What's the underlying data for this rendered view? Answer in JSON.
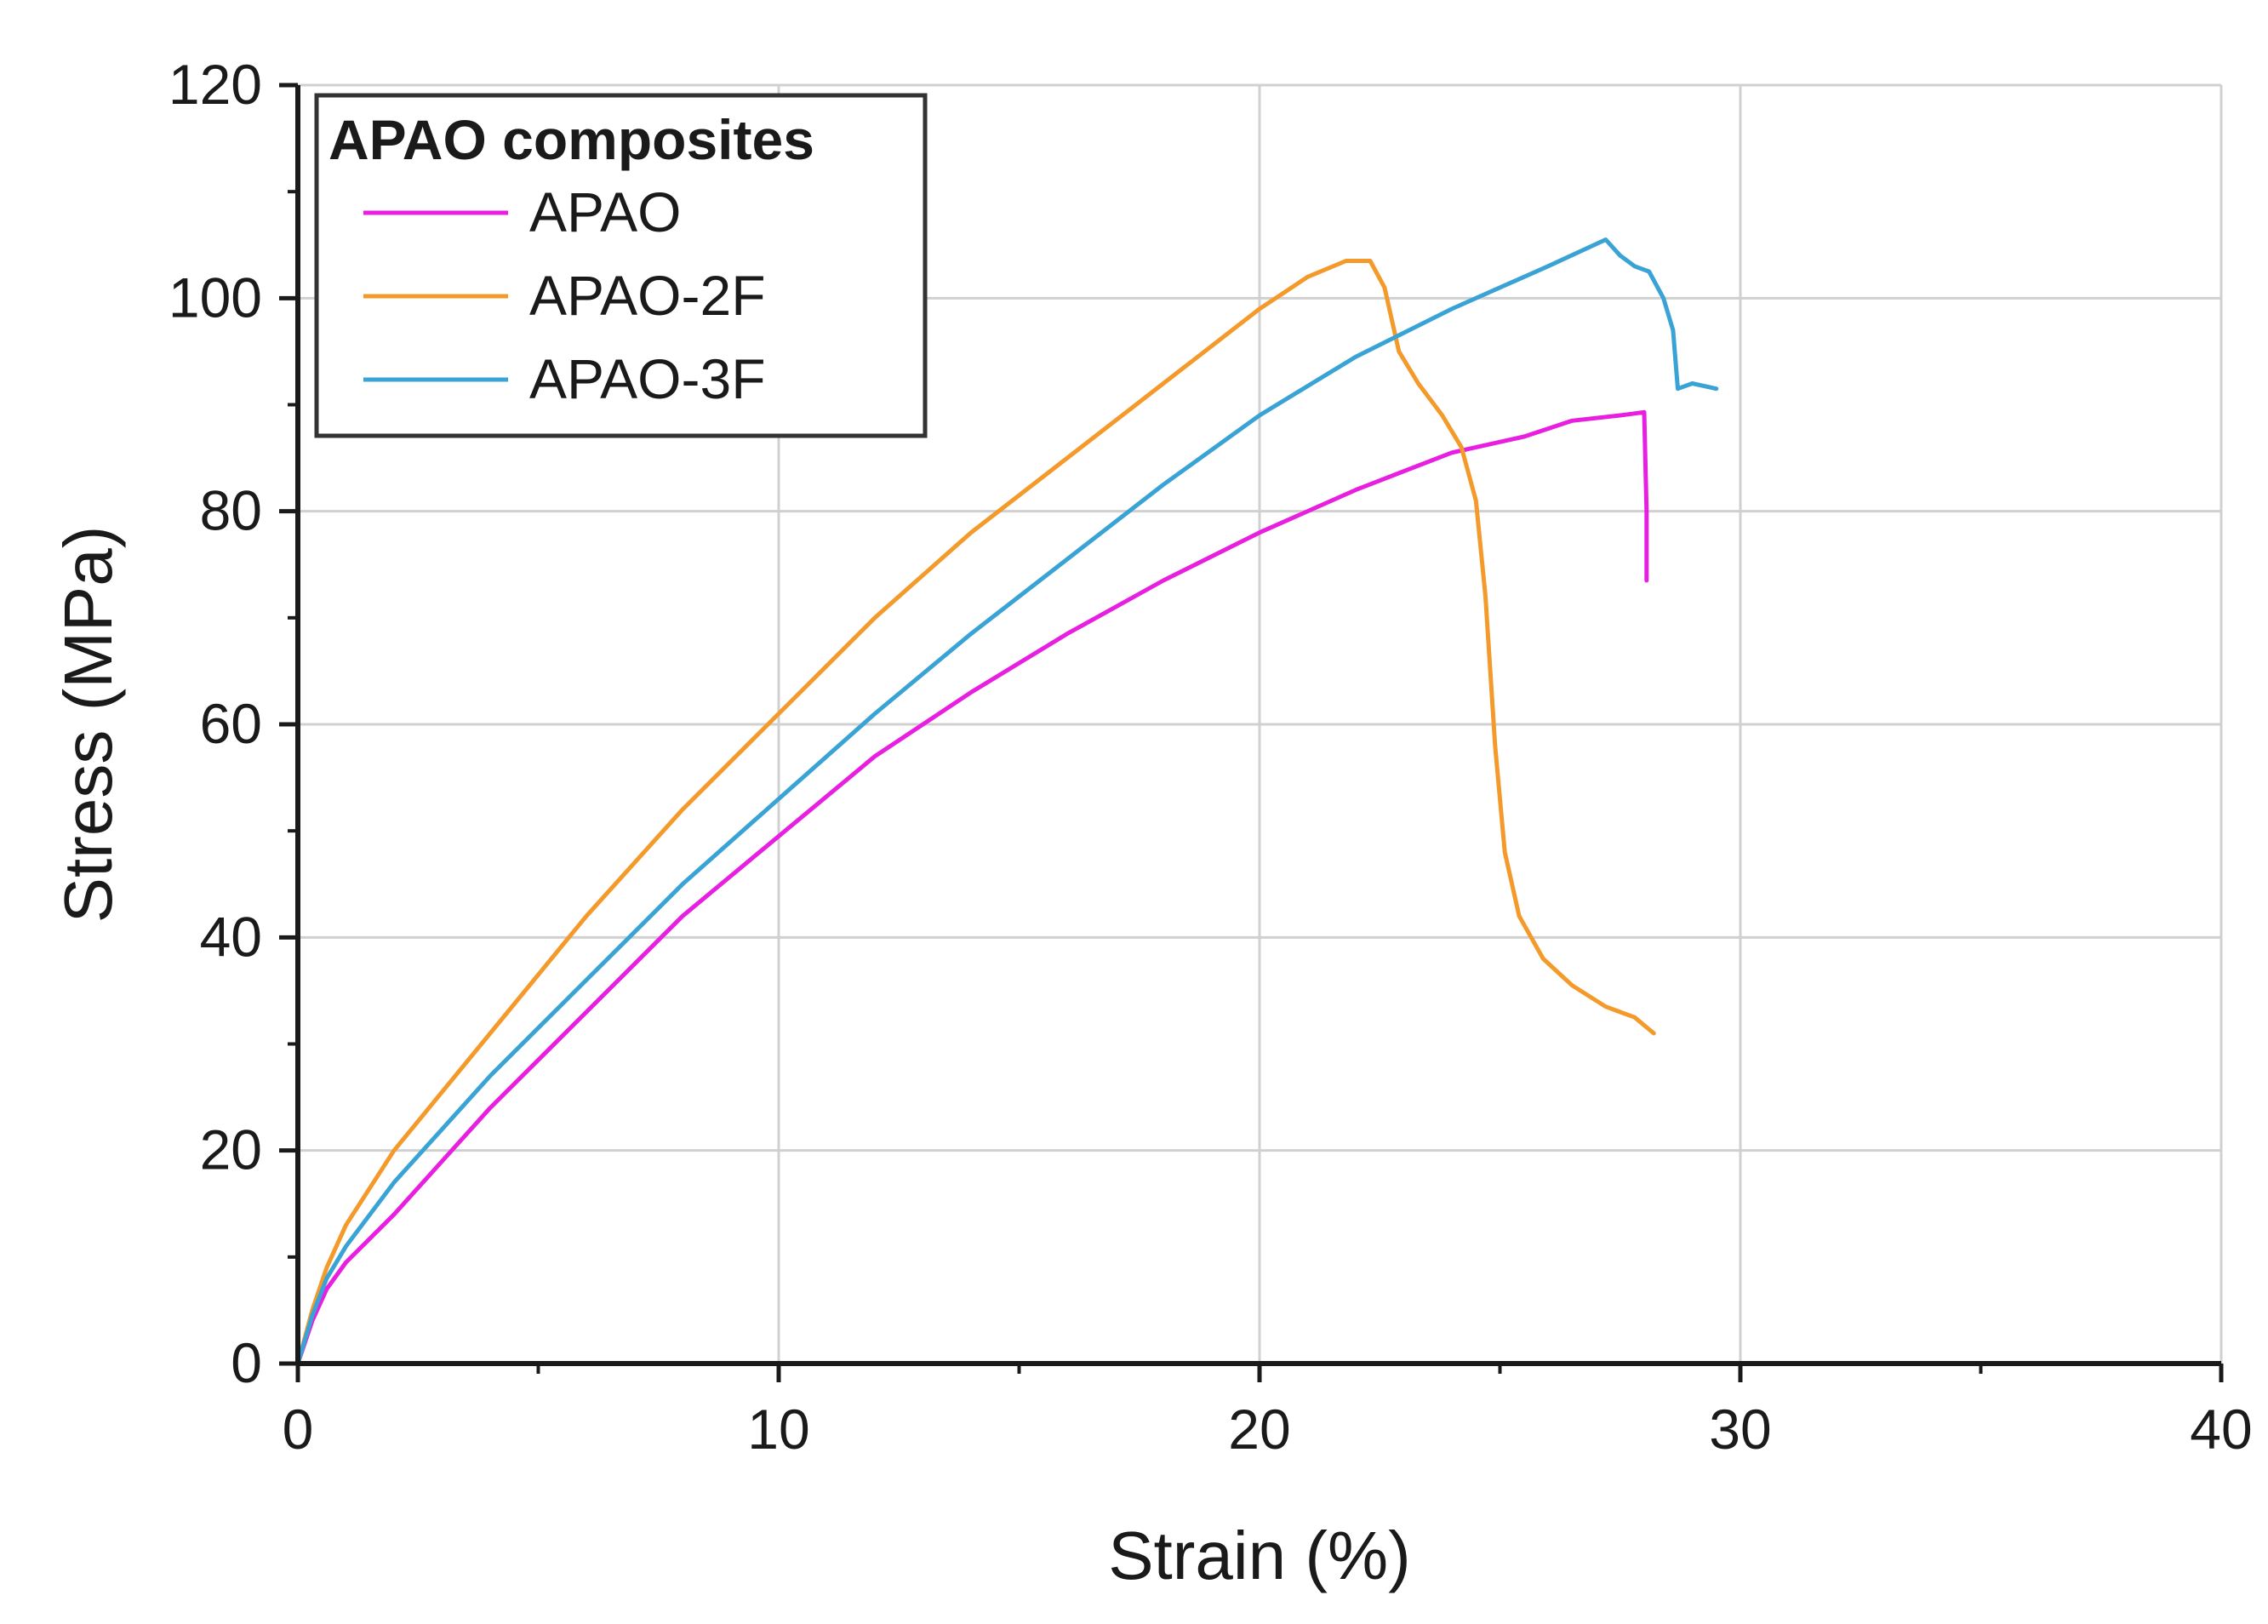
{
  "chart_data": {
    "type": "line",
    "title": "",
    "xlabel": "Strain (%)",
    "ylabel": "Stress (MPa)",
    "xlim": [
      0,
      40
    ],
    "ylim": [
      0,
      120
    ],
    "x_ticks": [
      0,
      10,
      20,
      30,
      40
    ],
    "y_ticks": [
      0,
      20,
      40,
      60,
      80,
      100,
      120
    ],
    "grid": true,
    "legend": {
      "title": "APAO composites",
      "placement": "top-left"
    },
    "series": [
      {
        "name": "APAO",
        "color": "#e81ee0",
        "points": [
          [
            0,
            0
          ],
          [
            0.3,
            4
          ],
          [
            0.6,
            7
          ],
          [
            1,
            9.5
          ],
          [
            2,
            14
          ],
          [
            4,
            24
          ],
          [
            6,
            33
          ],
          [
            8,
            42
          ],
          [
            10,
            49.5
          ],
          [
            12,
            57
          ],
          [
            14,
            63
          ],
          [
            16,
            68.5
          ],
          [
            18,
            73.5
          ],
          [
            20,
            78
          ],
          [
            22,
            82
          ],
          [
            24,
            85.5
          ],
          [
            25.5,
            87
          ],
          [
            26.5,
            88.5
          ],
          [
            27.5,
            89
          ],
          [
            28,
            89.3
          ],
          [
            28.05,
            80
          ],
          [
            28.05,
            73.5
          ]
        ]
      },
      {
        "name": "APAO-2F",
        "color": "#f39a2b",
        "points": [
          [
            0,
            0
          ],
          [
            0.3,
            5
          ],
          [
            0.6,
            9
          ],
          [
            1,
            13
          ],
          [
            2,
            20
          ],
          [
            4,
            31
          ],
          [
            6,
            42
          ],
          [
            8,
            52
          ],
          [
            10,
            61
          ],
          [
            12,
            70
          ],
          [
            14,
            78
          ],
          [
            16,
            85
          ],
          [
            18,
            92
          ],
          [
            20,
            99
          ],
          [
            21,
            102
          ],
          [
            21.8,
            103.5
          ],
          [
            22.3,
            103.5
          ],
          [
            22.6,
            101
          ],
          [
            22.9,
            95
          ],
          [
            23.3,
            92
          ],
          [
            23.8,
            89
          ],
          [
            24.2,
            86
          ],
          [
            24.5,
            81
          ],
          [
            24.7,
            72
          ],
          [
            24.9,
            58
          ],
          [
            25.1,
            48
          ],
          [
            25.4,
            42
          ],
          [
            25.9,
            38
          ],
          [
            26.5,
            35.5
          ],
          [
            27.2,
            33.5
          ],
          [
            27.8,
            32.5
          ],
          [
            28.2,
            31
          ]
        ]
      },
      {
        "name": "APAO-3F",
        "color": "#3aa3d6",
        "points": [
          [
            0,
            0
          ],
          [
            0.3,
            4.5
          ],
          [
            0.6,
            8
          ],
          [
            1,
            11
          ],
          [
            2,
            17
          ],
          [
            4,
            27
          ],
          [
            6,
            36
          ],
          [
            8,
            45
          ],
          [
            10,
            53
          ],
          [
            12,
            61
          ],
          [
            14,
            68.5
          ],
          [
            16,
            75.5
          ],
          [
            18,
            82.5
          ],
          [
            20,
            89
          ],
          [
            22,
            94.5
          ],
          [
            24,
            99
          ],
          [
            26,
            103
          ],
          [
            27.2,
            105.5
          ],
          [
            27.5,
            104
          ],
          [
            27.8,
            103
          ],
          [
            28.1,
            102.5
          ],
          [
            28.4,
            100
          ],
          [
            28.6,
            97
          ],
          [
            28.7,
            91.5
          ],
          [
            29,
            92
          ],
          [
            29.5,
            91.5
          ]
        ]
      }
    ]
  }
}
